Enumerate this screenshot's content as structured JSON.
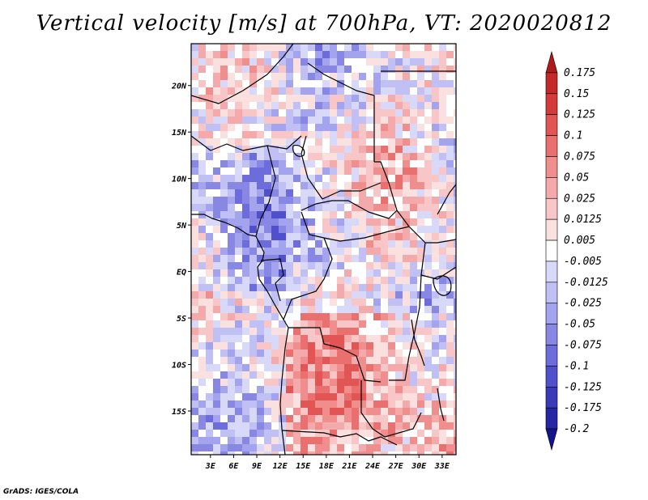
{
  "title": "Vertical velocity [m/s] at 700hPa, VT: 2020020812",
  "credit": "GrADS: IGES/COLA",
  "map": {
    "variable": "Vertical velocity",
    "units": "m/s",
    "level": "700hPa",
    "valid_time": "2020020812",
    "lat_labels": [
      "20N",
      "15N",
      "10N",
      "5N",
      "EQ",
      "5S",
      "10S",
      "15S"
    ],
    "lat_values": [
      20,
      15,
      10,
      5,
      0,
      -5,
      -10,
      -15
    ],
    "lon_labels": [
      "3E",
      "6E",
      "9E",
      "12E",
      "15E",
      "18E",
      "21E",
      "24E",
      "27E",
      "30E",
      "33E"
    ],
    "lon_values": [
      3,
      6,
      9,
      12,
      15,
      18,
      21,
      24,
      27,
      30,
      33
    ],
    "lat_range": [
      -19.7,
      24.5
    ],
    "lon_range": [
      0.5,
      34.8
    ]
  },
  "colorbar": {
    "labels": [
      "0.175",
      "0.15",
      "0.125",
      "0.1",
      "0.075",
      "0.05",
      "0.025",
      "0.0125",
      "0.005",
      "-0.005",
      "-0.0125",
      "-0.025",
      "-0.05",
      "-0.075",
      "-0.1",
      "-0.125",
      "-0.175",
      "-0.2"
    ],
    "colors": [
      "#b01a1a",
      "#c42828",
      "#d53a3a",
      "#e25555",
      "#ea7070",
      "#f08e8e",
      "#f4aaaa",
      "#f8c6c6",
      "#fbe0e0",
      "#ffffff",
      "#d8d8f8",
      "#c0c0f4",
      "#a4a4ee",
      "#8888e4",
      "#6c6cdc",
      "#5050cc",
      "#3a3ab8",
      "#2626a4",
      "#14148c"
    ]
  }
}
